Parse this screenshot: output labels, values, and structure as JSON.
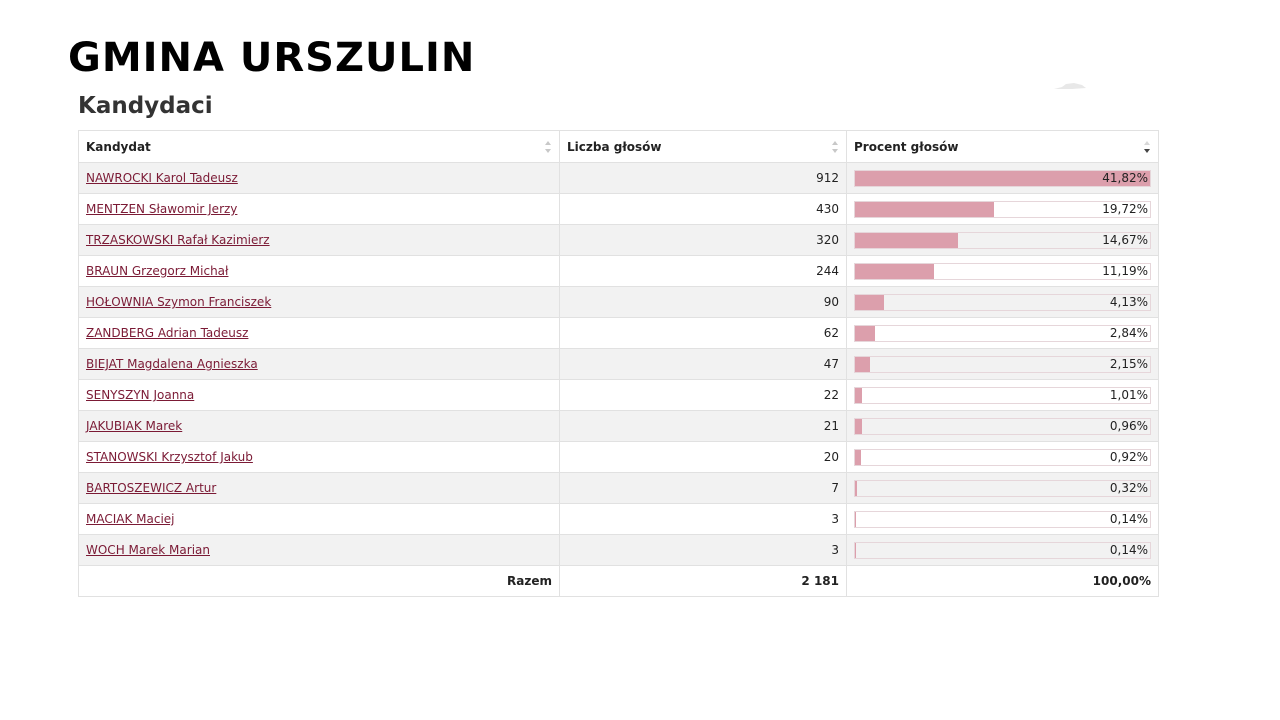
{
  "page": {
    "title": "GMINA URSZULIN",
    "subtitle": "Kandydaci"
  },
  "table": {
    "headers": {
      "candidate": "Kandydat",
      "votes": "Liczba głosów",
      "percent": "Procent głosów"
    },
    "rows": [
      {
        "name": "NAWROCKI Karol Tadeusz",
        "votes": "912",
        "percent": "41,82%",
        "share": 41.82
      },
      {
        "name": "MENTZEN Sławomir Jerzy",
        "votes": "430",
        "percent": "19,72%",
        "share": 19.72
      },
      {
        "name": "TRZASKOWSKI Rafał Kazimierz",
        "votes": "320",
        "percent": "14,67%",
        "share": 14.67
      },
      {
        "name": "BRAUN Grzegorz Michał",
        "votes": "244",
        "percent": "11,19%",
        "share": 11.19
      },
      {
        "name": "HOŁOWNIA Szymon Franciszek",
        "votes": "90",
        "percent": "4,13%",
        "share": 4.13
      },
      {
        "name": "ZANDBERG Adrian Tadeusz",
        "votes": "62",
        "percent": "2,84%",
        "share": 2.84
      },
      {
        "name": "BIEJAT Magdalena Agnieszka",
        "votes": "47",
        "percent": "2,15%",
        "share": 2.15
      },
      {
        "name": "SENYSZYN Joanna",
        "votes": "22",
        "percent": "1,01%",
        "share": 1.01
      },
      {
        "name": "JAKUBIAK Marek",
        "votes": "21",
        "percent": "0,96%",
        "share": 0.96
      },
      {
        "name": "STANOWSKI Krzysztof Jakub",
        "votes": "20",
        "percent": "0,92%",
        "share": 0.92
      },
      {
        "name": "BARTOSZEWICZ Artur",
        "votes": "7",
        "percent": "0,32%",
        "share": 0.32
      },
      {
        "name": "MACIAK Maciej",
        "votes": "3",
        "percent": "0,14%",
        "share": 0.14
      },
      {
        "name": "WOCH Marek Marian",
        "votes": "3",
        "percent": "0,14%",
        "share": 0.14
      }
    ],
    "footer": {
      "label": "Razem",
      "votes": "2 181",
      "percent": "100,00%"
    },
    "bar_scale_max": 41.82
  },
  "colors": {
    "bar": "#dc9fac",
    "link": "#7b1a35",
    "stripe": "#f2f2f2"
  },
  "icons": {
    "sort_unsorted": "sort-arrows-icon",
    "sort_desc": "sort-desc-icon"
  }
}
